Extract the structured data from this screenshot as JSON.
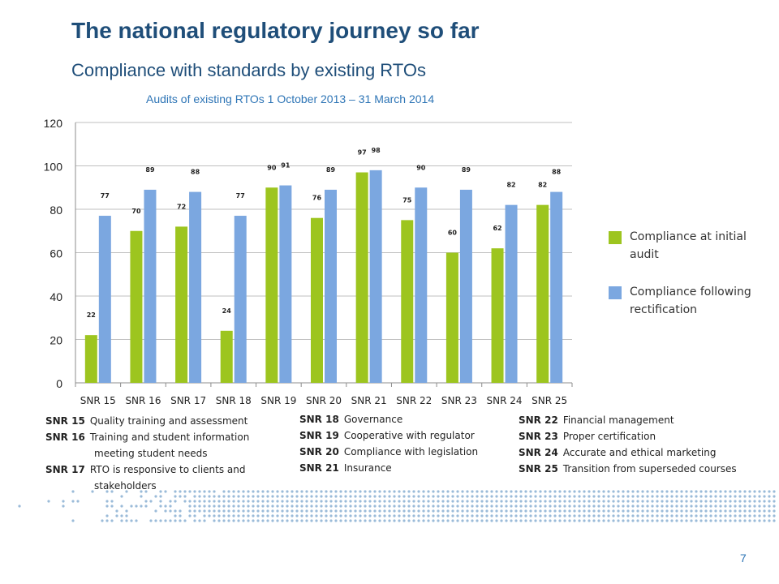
{
  "slide": {
    "title": "The national regulatory journey so far",
    "subtitle": "Compliance with standards by existing RTOs",
    "period": "Audits of existing RTOs 1 October 2013 – 31 March 2014",
    "page_number": "7"
  },
  "colors": {
    "initial": "#9dc51f",
    "rectified": "#7ba7e0",
    "title": "#1f4e79",
    "accent": "#2e75b6",
    "dots": "#9bbbd9"
  },
  "legend": [
    {
      "label": "Compliance at initial audit",
      "color": "#9dc51f"
    },
    {
      "label": "Compliance following rectification",
      "color": "#7ba7e0"
    }
  ],
  "glossary": {
    "col1": [
      {
        "code": "SNR 15",
        "desc": "Quality training and assessment"
      },
      {
        "code": "SNR 16",
        "desc": "Training and student information",
        "cont": "meeting student needs"
      },
      {
        "code": "SNR 17",
        "desc": "RTO is responsive to clients and",
        "cont": "stakeholders"
      }
    ],
    "col2": [
      {
        "code": "SNR 18",
        "desc": "Governance"
      },
      {
        "code": "SNR 19",
        "desc": "Cooperative with regulator"
      },
      {
        "code": "SNR 20",
        "desc": "Compliance with legislation"
      },
      {
        "code": "SNR 21",
        "desc": "Insurance"
      }
    ],
    "col3": [
      {
        "code": "SNR 22",
        "desc": "Financial management"
      },
      {
        "code": "SNR 23",
        "desc": "Proper certification"
      },
      {
        "code": "SNR 24",
        "desc": "Accurate and ethical marketing"
      },
      {
        "code": "SNR 25",
        "desc": "Transition from superseded courses"
      }
    ]
  },
  "chart_data": {
    "type": "bar",
    "categories": [
      "SNR 15",
      "SNR 16",
      "SNR 17",
      "SNR 18",
      "SNR 19",
      "SNR 20",
      "SNR 21",
      "SNR 22",
      "SNR 23",
      "SNR 24",
      "SNR 25"
    ],
    "series": [
      {
        "name": "Compliance at initial audit",
        "values": [
          22,
          70,
          72,
          24,
          90,
          76,
          97,
          75,
          60,
          62,
          82
        ]
      },
      {
        "name": "Compliance following rectification",
        "values": [
          77,
          89,
          88,
          77,
          91,
          89,
          98,
          90,
          89,
          82,
          88
        ]
      }
    ],
    "ylim": [
      0,
      120
    ],
    "yticks": [
      0,
      20,
      40,
      60,
      80,
      100,
      120
    ],
    "grid": true,
    "legend_position": "right"
  }
}
